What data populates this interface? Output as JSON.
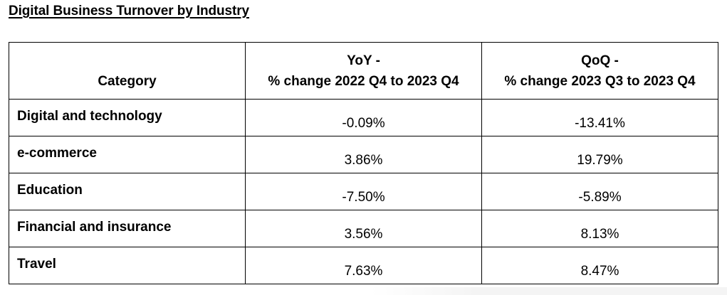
{
  "title": "Digital Business Turnover by Industry",
  "table": {
    "headers": {
      "category": "Category",
      "yoy_line1": "YoY -",
      "yoy_line2": "% change 2022 Q4 to 2023 Q4",
      "qoq_line1": "QoQ -",
      "qoq_line2": "% change 2023 Q3 to 2023 Q4"
    },
    "rows": [
      {
        "category": "Digital and technology",
        "yoy": "-0.09%",
        "qoq": "-13.41%"
      },
      {
        "category": "e-commerce",
        "yoy": "3.86%",
        "qoq": "19.79%"
      },
      {
        "category": "Education",
        "yoy": "-7.50%",
        "qoq": "-5.89%"
      },
      {
        "category": "Financial and insurance",
        "yoy": "3.56%",
        "qoq": "8.13%"
      },
      {
        "category": "Travel",
        "yoy": "7.63%",
        "qoq": "8.47%"
      }
    ]
  }
}
